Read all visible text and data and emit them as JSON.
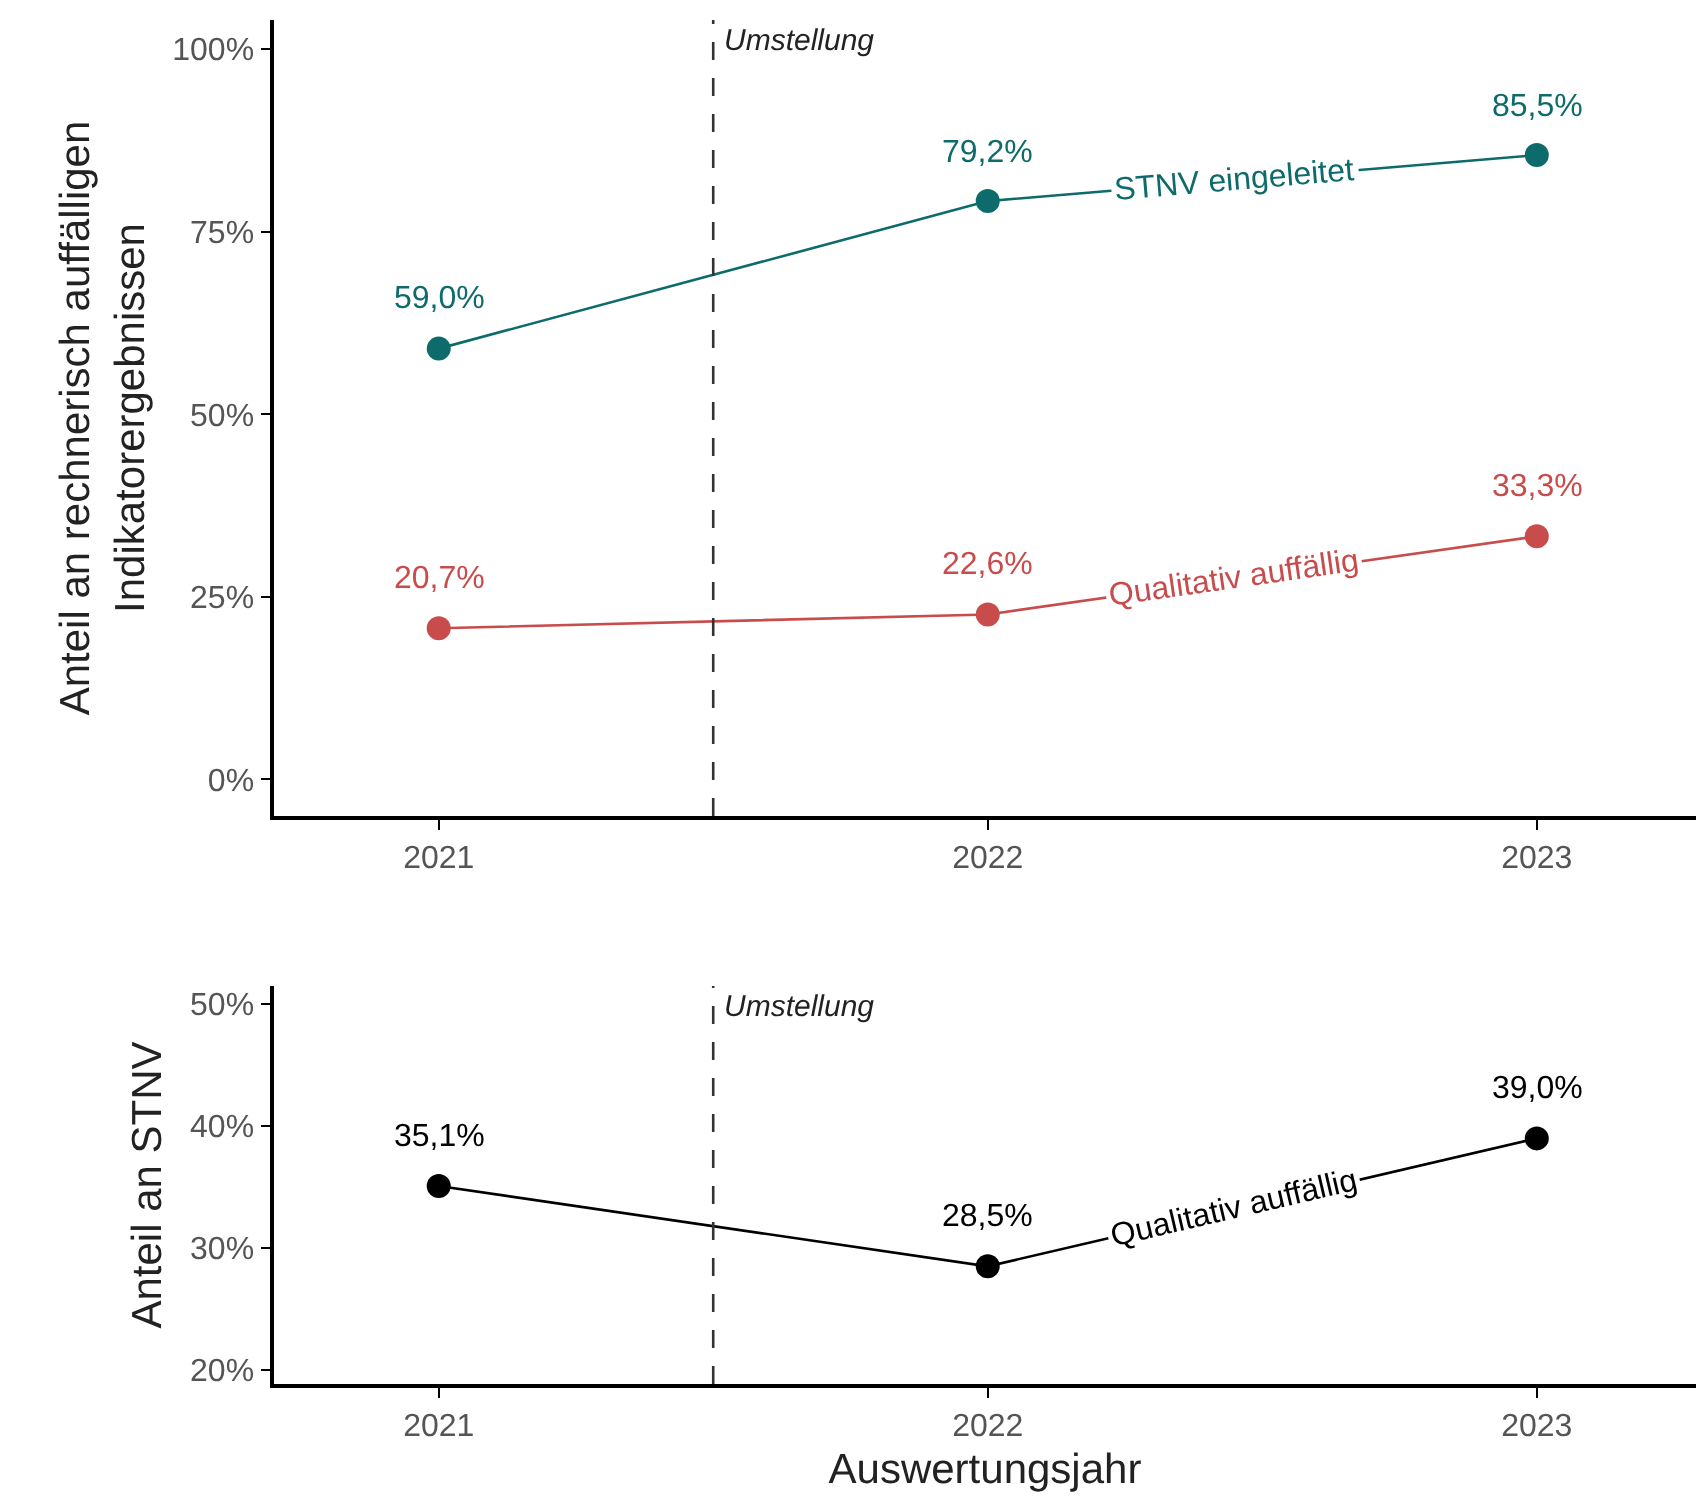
{
  "chart_data": [
    {
      "type": "line",
      "ylabel": "Anteil an rechnerisch auffälligen\nIndikatorergebnissen",
      "x": [
        2021,
        2022,
        2023
      ],
      "xlim": [
        2020.7,
        2023.29
      ],
      "xticks": [
        2021,
        2022,
        2023
      ],
      "ylim": [
        -5,
        104
      ],
      "yticks": [
        {
          "value": 0,
          "label": "0%"
        },
        {
          "value": 25,
          "label": "25%"
        },
        {
          "value": 50,
          "label": "50%"
        },
        {
          "value": 75,
          "label": "75%"
        },
        {
          "value": 100,
          "label": "100%"
        }
      ],
      "marker": "circle",
      "line_style": "solid",
      "series": [
        {
          "name": "STNV eingeleitet",
          "color": "#0e6b6b",
          "values": [
            59.0,
            79.2,
            85.5
          ],
          "value_labels": [
            "59,0%",
            "79,2%",
            "85,5%"
          ]
        },
        {
          "name": "Qualitativ auffällig",
          "color": "#c94c4c",
          "values": [
            20.7,
            22.6,
            33.3
          ],
          "value_labels": [
            "20,7%",
            "22,6%",
            "33,3%"
          ]
        }
      ],
      "ref_lines": [
        {
          "axis": "x",
          "value": 2021.5,
          "label": "Umstellung",
          "color": "#333333",
          "line_style": "dashed"
        }
      ]
    },
    {
      "type": "line",
      "ylabel": "Anteil an STNV",
      "xlabel": "Auswertungsjahr",
      "x": [
        2021,
        2022,
        2023
      ],
      "xlim": [
        2020.7,
        2023.29
      ],
      "xticks": [
        2021,
        2022,
        2023
      ],
      "ylim": [
        18.85,
        51.5
      ],
      "yticks": [
        {
          "value": 20,
          "label": "20%"
        },
        {
          "value": 30,
          "label": "30%"
        },
        {
          "value": 40,
          "label": "40%"
        },
        {
          "value": 50,
          "label": "50%"
        }
      ],
      "marker": "circle",
      "line_style": "solid",
      "series": [
        {
          "name": "Qualitativ auffällig",
          "color": "#000000",
          "values": [
            35.1,
            28.5,
            39.0
          ],
          "value_labels": [
            "35,1%",
            "28,5%",
            "39,0%"
          ]
        }
      ],
      "ref_lines": [
        {
          "axis": "x",
          "value": 2021.5,
          "label": "Umstellung",
          "color": "#333333",
          "line_style": "dashed"
        }
      ]
    }
  ]
}
